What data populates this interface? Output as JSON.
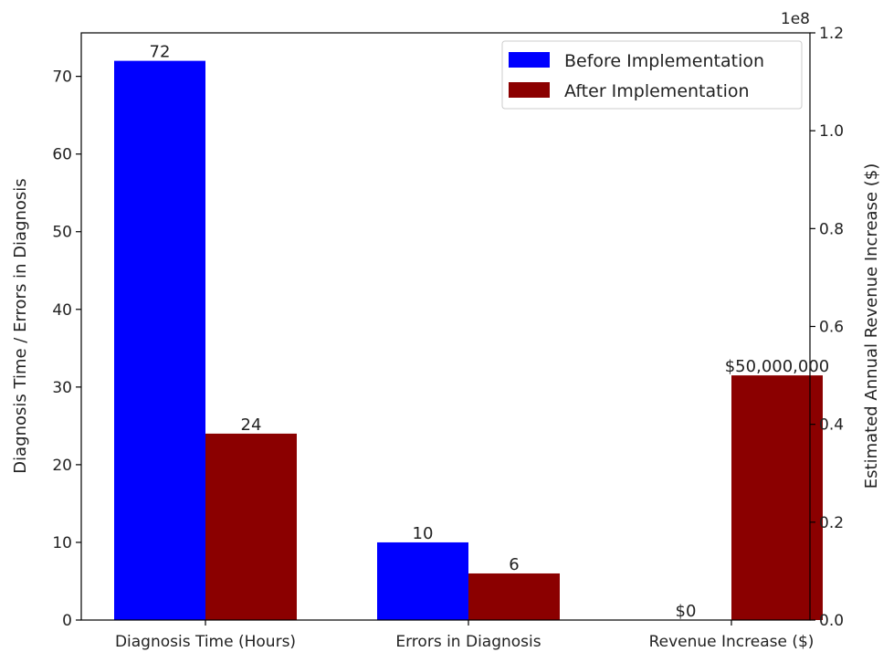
{
  "chart_data": {
    "type": "bar",
    "categories": [
      "Diagnosis Time (Hours)",
      "Errors in Diagnosis",
      "Revenue Increase ($)"
    ],
    "series": [
      {
        "name": "Before Implementation",
        "color": "#0000ff",
        "values": [
          72,
          10,
          0
        ],
        "labels": [
          "72",
          "10",
          "$0"
        ],
        "axis": [
          "left",
          "left",
          "right"
        ]
      },
      {
        "name": "After Implementation",
        "color": "#8b0000",
        "values": [
          24,
          6,
          50000000
        ],
        "labels": [
          "24",
          "6",
          "$50,000,000"
        ],
        "axis": [
          "left",
          "left",
          "right"
        ]
      }
    ],
    "ylabel": "Diagnosis Time / Errors in Diagnosis",
    "y2label": "Estimated Annual Revenue Increase ($)",
    "y2_offset_label": "1e8",
    "ylim": [
      0,
      75.6
    ],
    "y2lim": [
      0,
      120000000
    ],
    "yticks": [
      0,
      10,
      20,
      30,
      40,
      50,
      60,
      70
    ],
    "y2ticks": [
      0,
      20000000,
      40000000,
      60000000,
      80000000,
      100000000,
      120000000
    ],
    "y2tick_labels": [
      "0.0",
      "0.2",
      "0.4",
      "0.6",
      "0.8",
      "1.0",
      "1.2"
    ],
    "legend_position": "top-right",
    "grid": false
  }
}
